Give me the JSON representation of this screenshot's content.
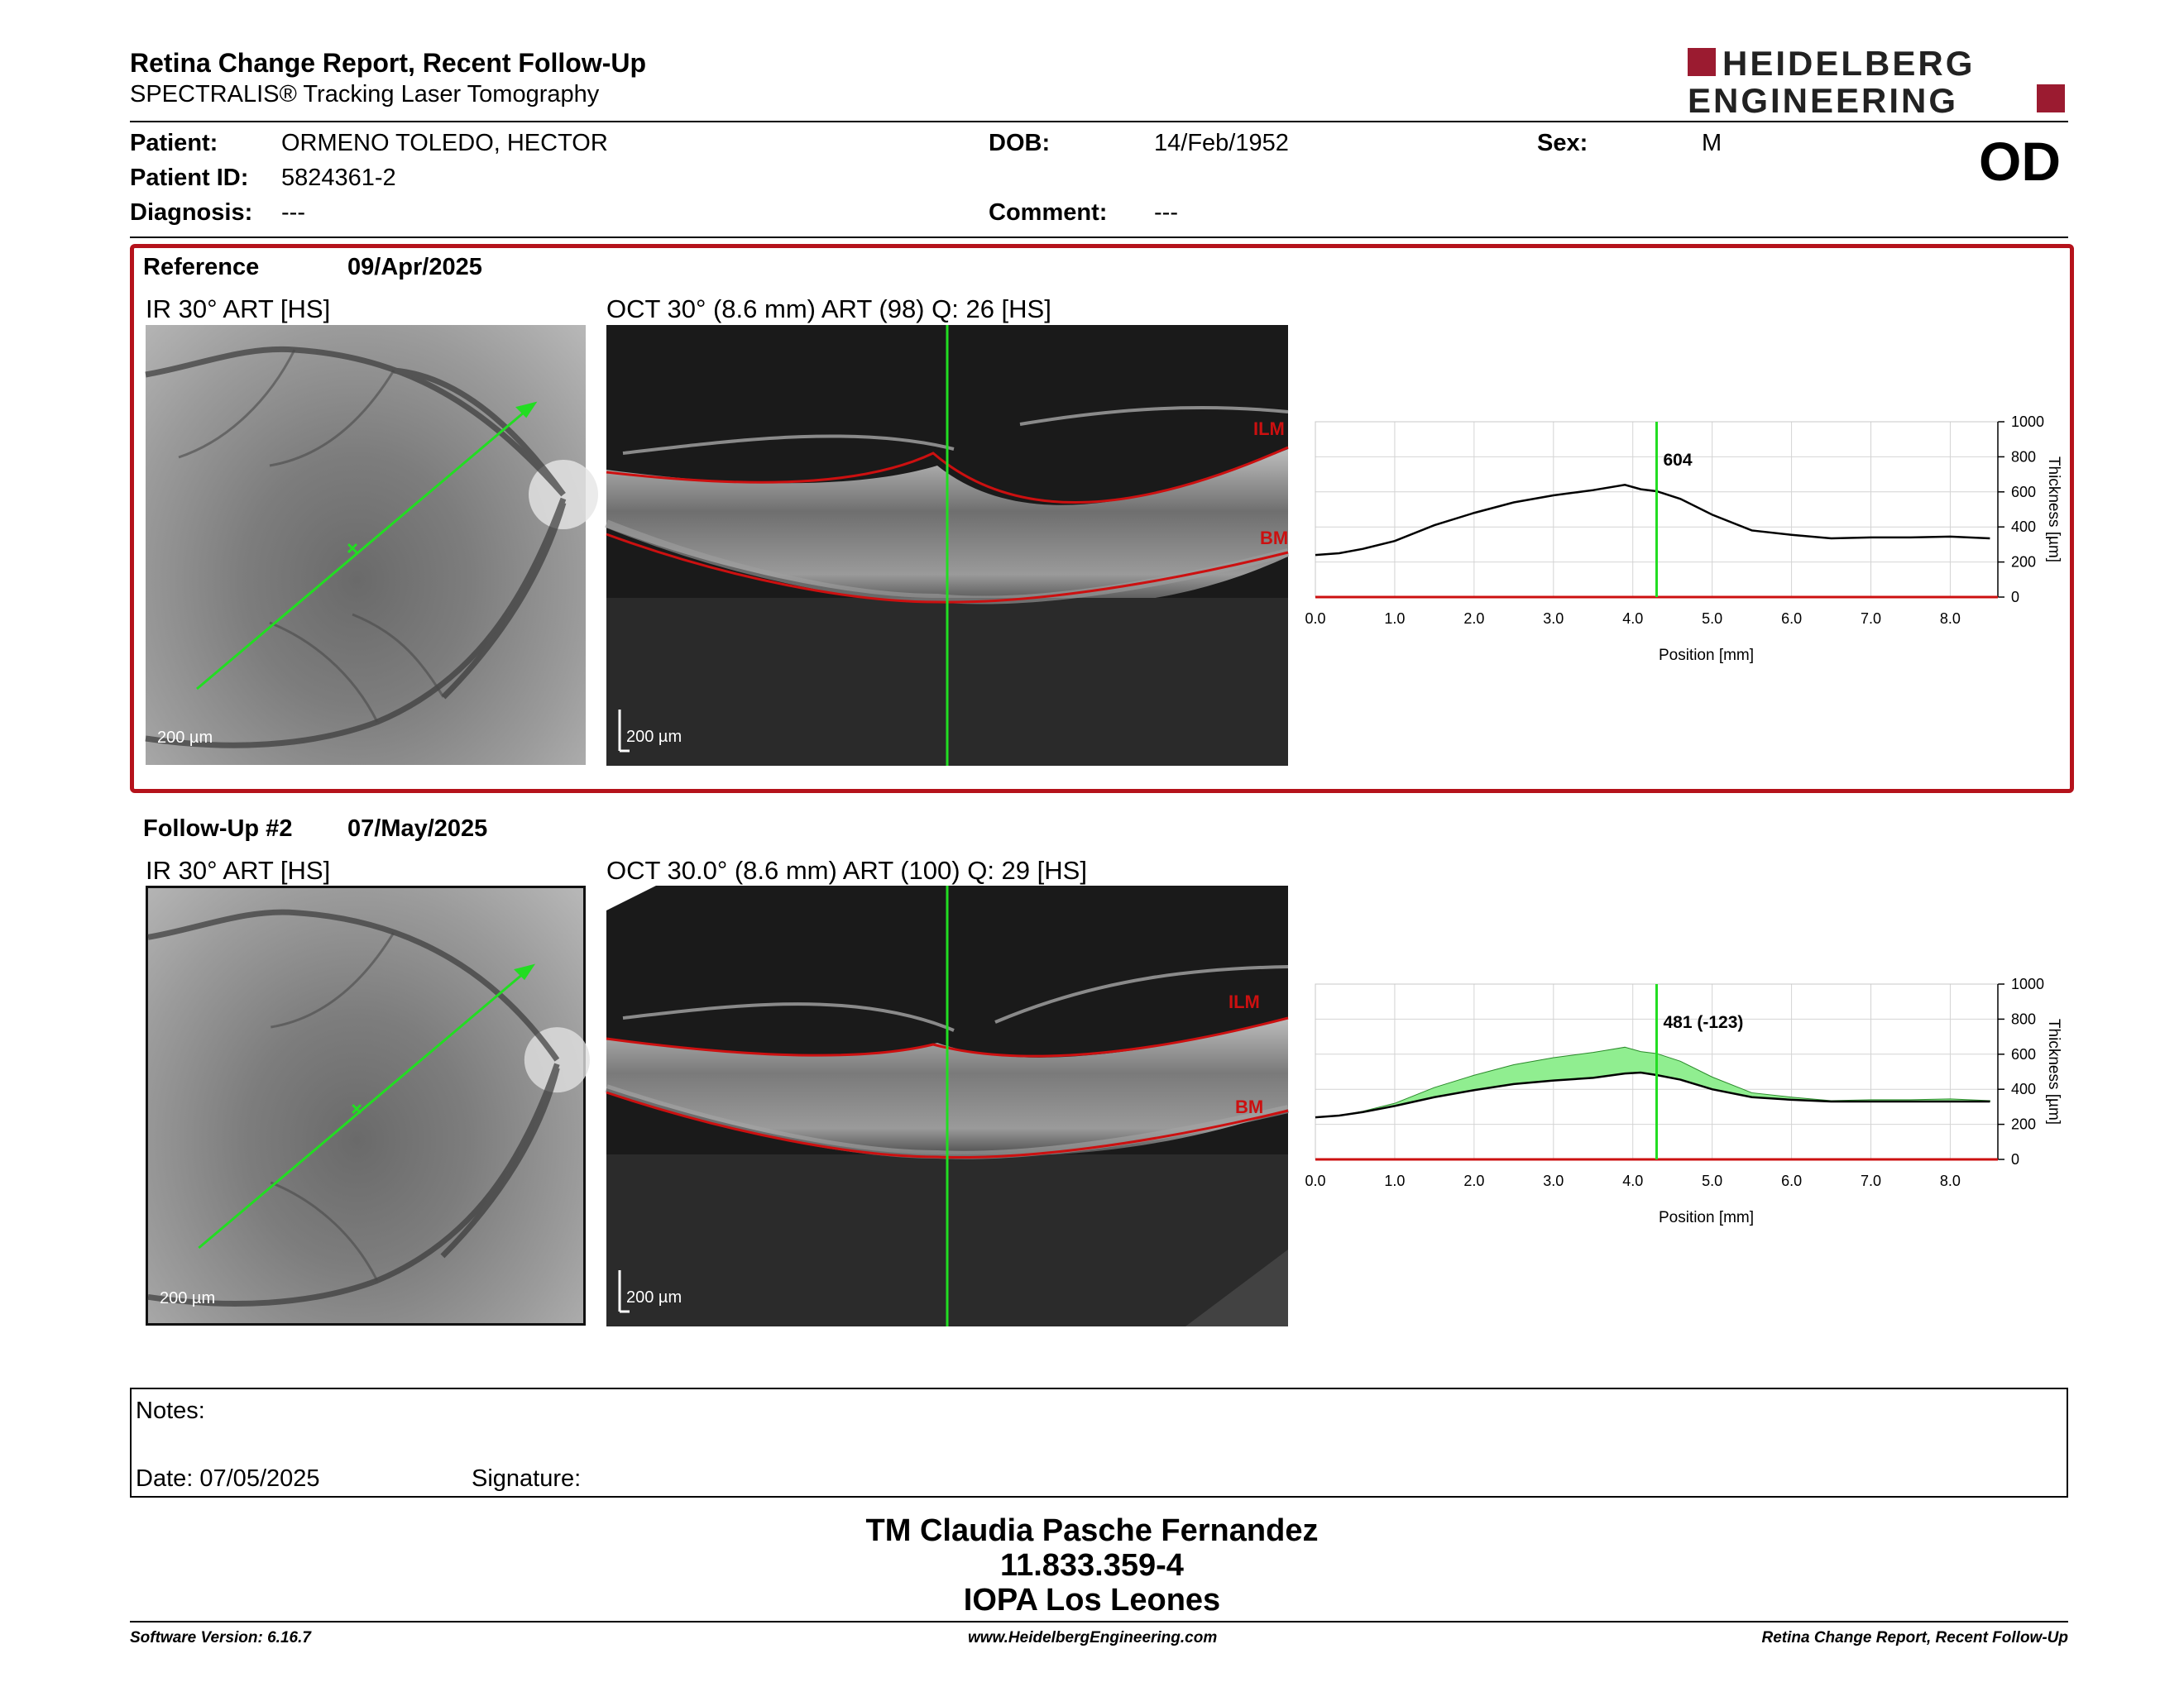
{
  "header": {
    "title": "Retina Change Report, Recent Follow-Up",
    "subtitle": "SPECTRALIS® Tracking Laser Tomography",
    "logo_line1": "HEIDELBERG",
    "logo_line2": "ENGINEERING",
    "brand_color": "#9b1b30"
  },
  "patient": {
    "name_label": "Patient:",
    "name": "ORMENO TOLEDO, HECTOR",
    "id_label": "Patient ID:",
    "id": "5824361-2",
    "diagnosis_label": "Diagnosis:",
    "diagnosis": "---",
    "dob_label": "DOB:",
    "dob": "14/Feb/1952",
    "comment_label": "Comment:",
    "comment": "---",
    "sex_label": "Sex:",
    "sex": "M",
    "eye": "OD"
  },
  "reference": {
    "label": "Reference",
    "date": "09/Apr/2025",
    "ir_label": "IR 30° ART [HS]",
    "oct_label": "OCT 30° (8.6 mm) ART (98) Q: 26 [HS]",
    "scale_ir": "200 µm",
    "scale_oct": "200 µm",
    "ilm": "ILM",
    "bm": "BM",
    "marker_value": "604",
    "box_color": "#b5121b"
  },
  "followup": {
    "label": "Follow-Up #2",
    "date": "07/May/2025",
    "ir_label": "IR 30° ART [HS]",
    "oct_label": "OCT 30.0° (8.6 mm) ART (100) Q: 29 [HS]",
    "scale_ir": "200 µm",
    "scale_oct": "200 µm",
    "ilm": "ILM",
    "bm": "BM",
    "marker_value": "481 (-123)"
  },
  "chart_data": [
    {
      "type": "line",
      "xlabel": "Position [mm]",
      "ylabel": "Thickness [µm]",
      "xlim": [
        0,
        8.6
      ],
      "ylim": [
        0,
        1000
      ],
      "x_ticks": [
        "0.0",
        "1.0",
        "2.0",
        "3.0",
        "4.0",
        "5.0",
        "6.0",
        "7.0",
        "8.0"
      ],
      "y_ticks": [
        "0",
        "200",
        "400",
        "600",
        "800",
        "1000"
      ],
      "marker_x": 4.3,
      "marker_label": "604",
      "grid": true,
      "series": [
        {
          "x": [
            0,
            0.3,
            0.6,
            1.0,
            1.5,
            2.0,
            2.5,
            3.0,
            3.5,
            3.9,
            4.1,
            4.3,
            4.6,
            5.0,
            5.5,
            6.0,
            6.5,
            7.0,
            7.5,
            8.0,
            8.5
          ],
          "values": [
            240,
            250,
            275,
            320,
            410,
            480,
            540,
            580,
            610,
            640,
            615,
            604,
            560,
            470,
            380,
            355,
            335,
            340,
            340,
            345,
            335
          ]
        }
      ]
    },
    {
      "type": "area",
      "xlabel": "Position [mm]",
      "ylabel": "Thickness [µm]",
      "xlim": [
        0,
        8.6
      ],
      "ylim": [
        0,
        1000
      ],
      "x_ticks": [
        "0.0",
        "1.0",
        "2.0",
        "3.0",
        "4.0",
        "5.0",
        "6.0",
        "7.0",
        "8.0"
      ],
      "y_ticks": [
        "0",
        "200",
        "400",
        "600",
        "800",
        "1000"
      ],
      "marker_x": 4.3,
      "marker_label": "481 (-123)",
      "grid": true,
      "fill_color": "#90ee90",
      "series": [
        {
          "x": [
            0,
            0.3,
            0.6,
            1.0,
            1.5,
            2.0,
            2.5,
            3.0,
            3.5,
            3.9,
            4.1,
            4.3,
            4.6,
            5.0,
            5.5,
            6.0,
            6.5,
            7.0,
            7.5,
            8.0,
            8.5
          ],
          "values": [
            240,
            250,
            275,
            320,
            410,
            480,
            540,
            580,
            610,
            640,
            615,
            604,
            560,
            470,
            380,
            355,
            335,
            340,
            340,
            345,
            335
          ]
        },
        {
          "x": [
            0,
            0.3,
            0.6,
            1.0,
            1.5,
            2.0,
            2.5,
            3.0,
            3.5,
            3.9,
            4.1,
            4.3,
            4.6,
            5.0,
            5.5,
            6.0,
            6.5,
            7.0,
            7.5,
            8.0,
            8.5
          ],
          "values": [
            240,
            250,
            270,
            305,
            355,
            395,
            430,
            450,
            465,
            490,
            495,
            481,
            455,
            400,
            355,
            340,
            330,
            330,
            330,
            330,
            330
          ]
        }
      ]
    }
  ],
  "notes": {
    "label": "Notes:",
    "date_label": "Date: 07/05/2025",
    "signature_label": "Signature:"
  },
  "stamp": {
    "line1": "TM Claudia Pasche Fernandez",
    "line2": "11.833.359-4",
    "line3": "IOPA Los Leones"
  },
  "footer": {
    "software": "Software Version: 6.16.7",
    "website": "www.HeidelbergEngineering.com",
    "report": "Retina Change Report, Recent Follow-Up"
  }
}
